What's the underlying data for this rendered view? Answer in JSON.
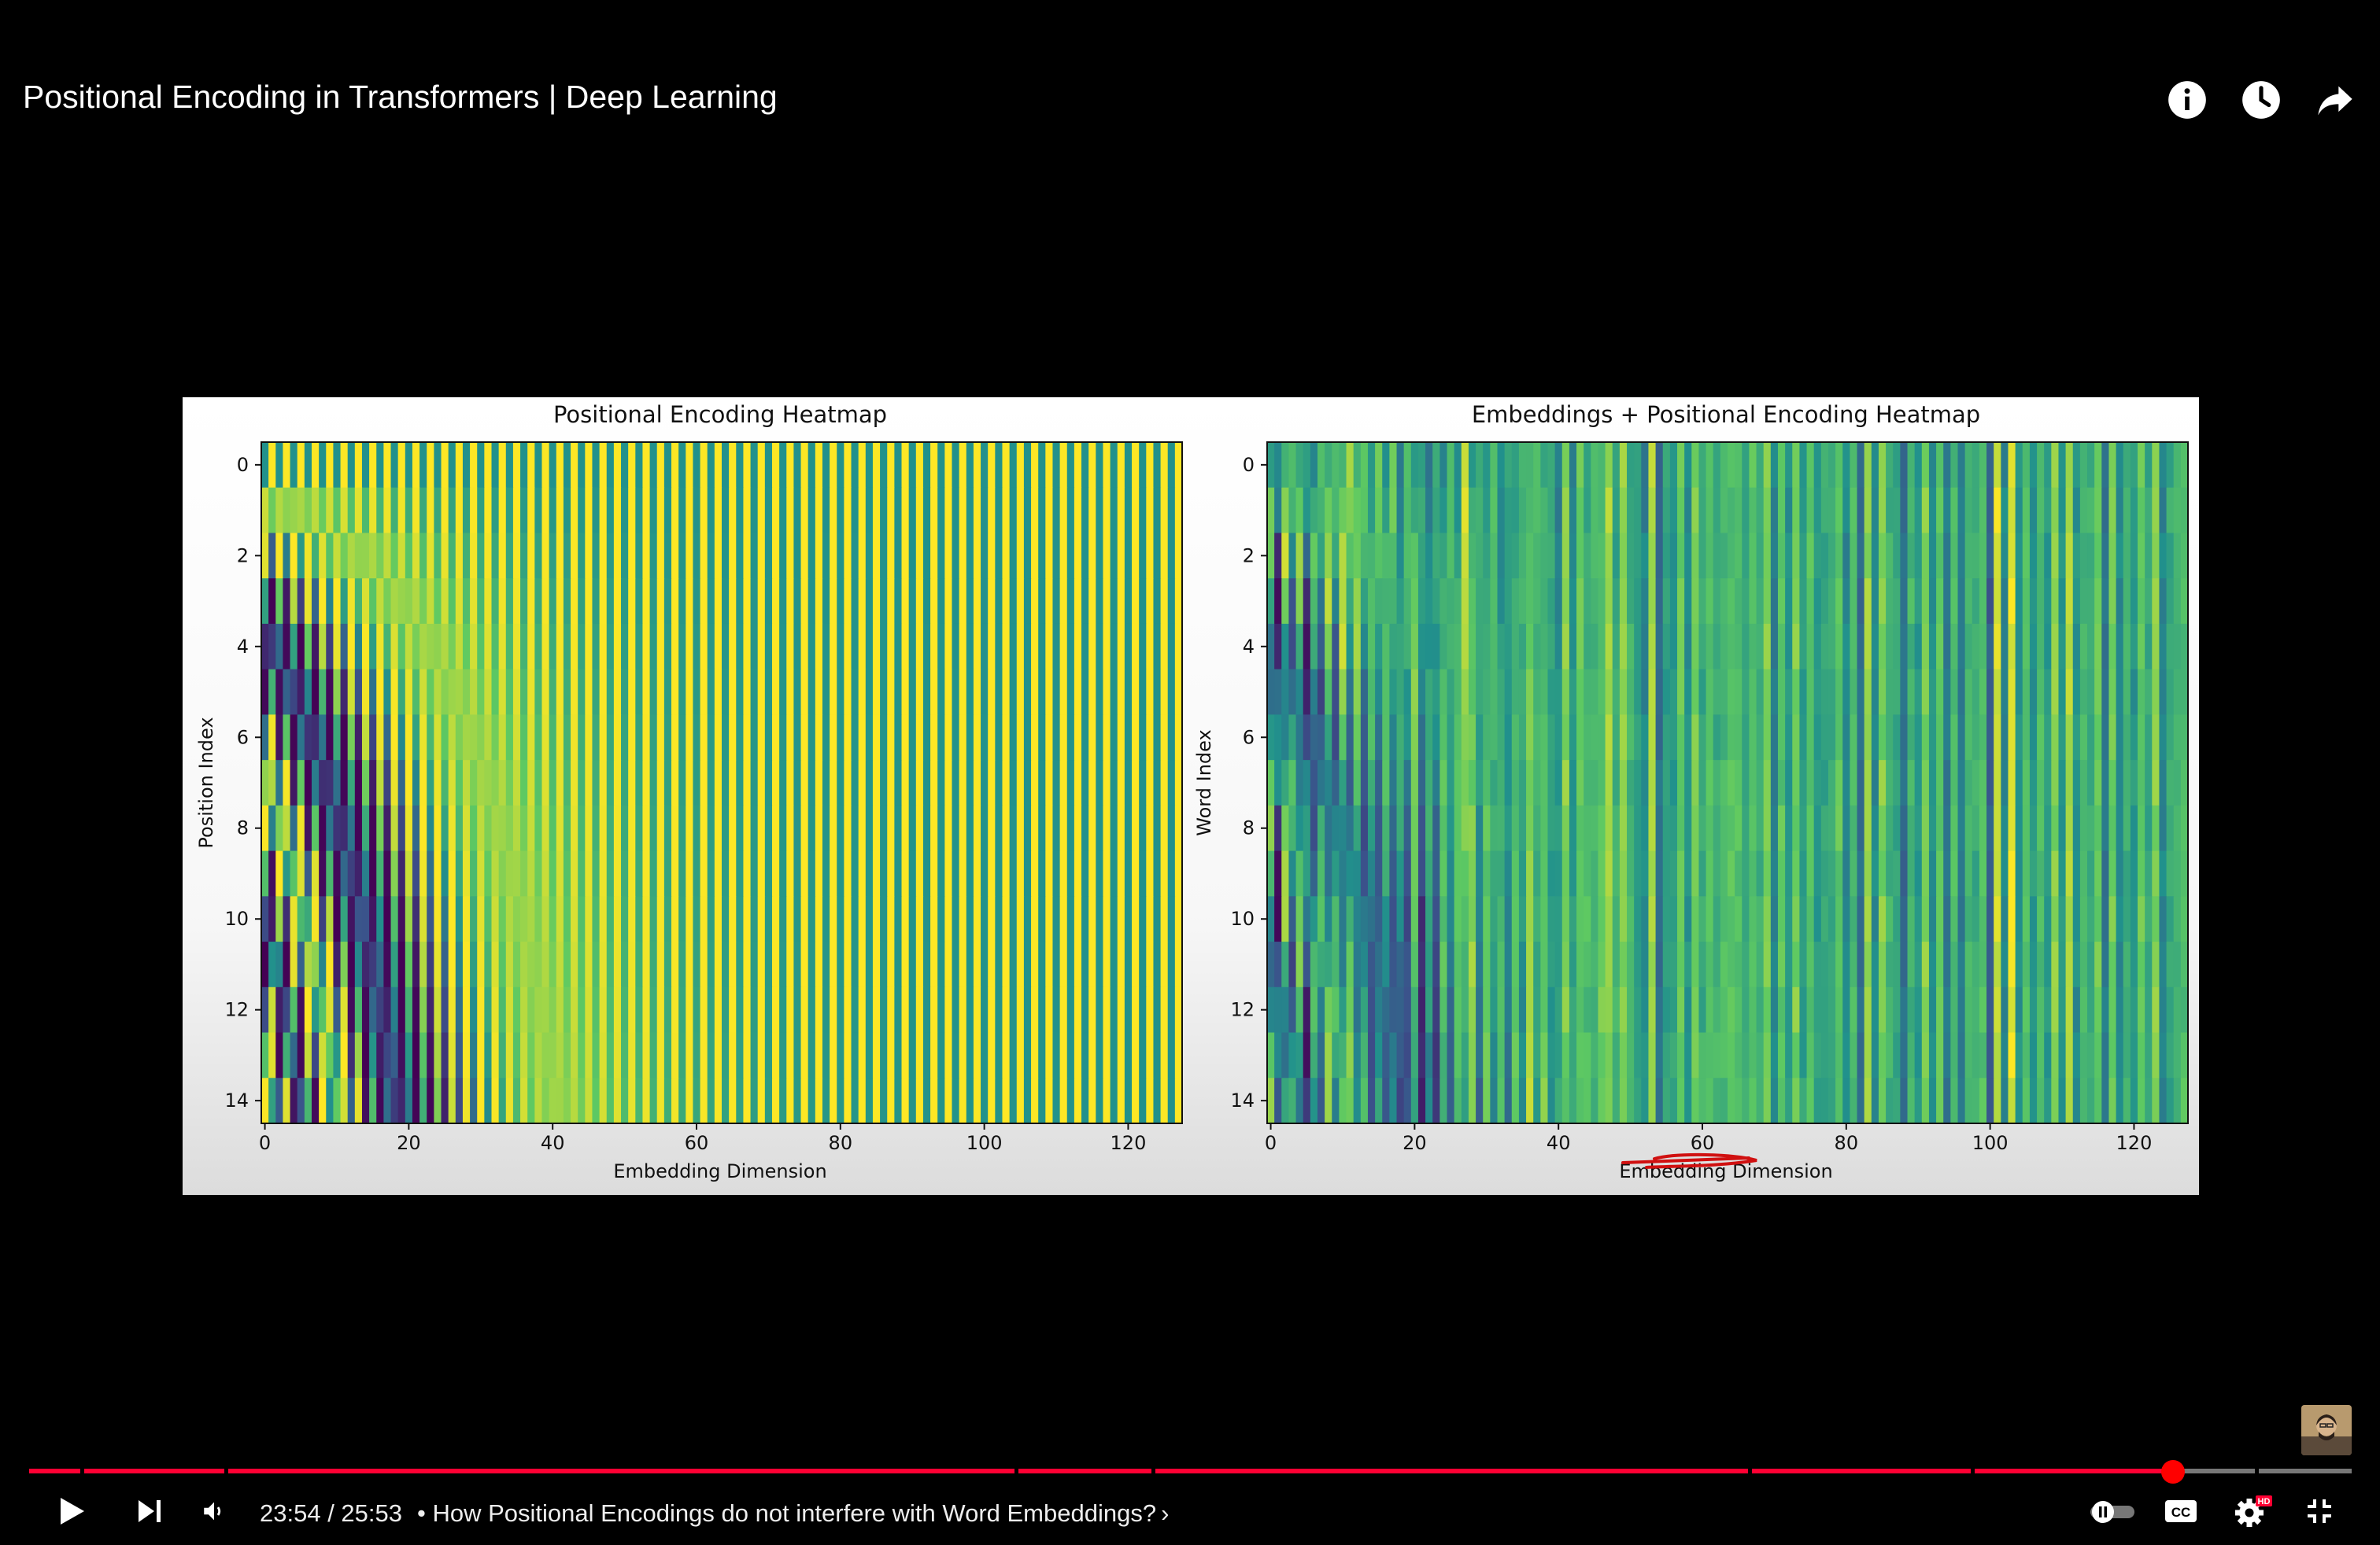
{
  "video": {
    "title": "Positional Encoding in Transformers | Deep Learning",
    "current_time": "23:54",
    "duration": "25:53",
    "time_separator": " / ",
    "chapter": "• How Positional Encodings do not interfere with Word Embeddings?",
    "chapter_chevron": "›",
    "progress_fraction": 0.923,
    "chapter_marks": [
      0.0,
      0.023,
      0.085,
      0.425,
      0.484,
      0.741,
      0.837,
      0.959
    ]
  },
  "icons": {
    "info": "info-icon",
    "watch_later": "clock-icon",
    "share": "share-icon",
    "play": "play-icon",
    "next": "next-icon",
    "volume": "volume-icon",
    "autoplay": "autoplay-toggle-icon",
    "captions": "captions-icon",
    "settings": "gear-icon",
    "exit_fullscreen": "exit-fullscreen-icon"
  },
  "captions_label": "CC",
  "hd_badge": "HD",
  "colors": {
    "progress_played": "#f03",
    "progress_unplayed": "#777",
    "viridis_dark": "#440154",
    "viridis_mid": "#21918c",
    "viridis_light": "#fde725"
  },
  "chart_data": [
    {
      "type": "heatmap",
      "title": "Positional Encoding Heatmap",
      "xlabel": "Embedding Dimension",
      "ylabel": "Position Index",
      "x_ticks": [
        0,
        20,
        40,
        60,
        80,
        100,
        120
      ],
      "y_ticks": [
        0,
        2,
        4,
        6,
        8,
        10,
        12,
        14
      ],
      "xlim": [
        0,
        128
      ],
      "ylim": [
        0,
        15
      ],
      "colormap": "viridis",
      "grid": false
    },
    {
      "type": "heatmap",
      "title": "Embeddings + Positional Encoding Heatmap",
      "xlabel": "Embedding Dimension",
      "ylabel": "Word Index",
      "x_ticks": [
        0,
        20,
        40,
        60,
        80,
        100,
        120
      ],
      "y_ticks": [
        0,
        2,
        4,
        6,
        8,
        10,
        12,
        14
      ],
      "xlim": [
        0,
        128
      ],
      "ylim": [
        0,
        15
      ],
      "colormap": "viridis",
      "grid": false
    }
  ]
}
